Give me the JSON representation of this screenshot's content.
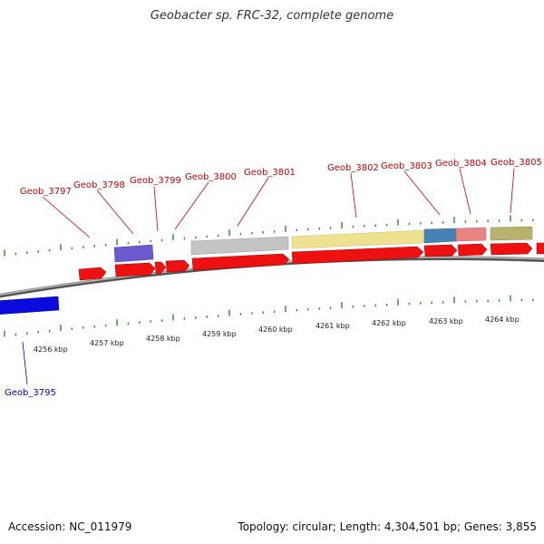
{
  "title": "Geobacter sp. FRC-32, complete genome",
  "footer": {
    "accession": "Accession: NC_011979",
    "summary": "Topology: circular; Length: 4,304,501 bp; Genes: 3,855"
  },
  "colors": {
    "label_red": "#cc0000",
    "label_blue": "#0000cc",
    "tick_green": "#2e8b2e",
    "cds_red": "#ee1111",
    "backbone": "#888888"
  },
  "scale_labels": [
    "4256 kbp",
    "4257 kbp",
    "4258 kbp",
    "4259 kbp",
    "4260 kbp",
    "4261 kbp",
    "4262 kbp",
    "4263 kbp",
    "4264 kbp"
  ],
  "gene_labels": [
    {
      "text": "Geob_3797",
      "strand": "forward"
    },
    {
      "text": "Geob_3798",
      "strand": "forward"
    },
    {
      "text": "Geob_3799",
      "strand": "forward"
    },
    {
      "text": "Geob_3800",
      "strand": "forward"
    },
    {
      "text": "Geob_3801",
      "strand": "forward"
    },
    {
      "text": "Geob_3802",
      "strand": "forward"
    },
    {
      "text": "Geob_3803",
      "strand": "forward"
    },
    {
      "text": "Geob_3804",
      "strand": "forward"
    },
    {
      "text": "Geob_3805",
      "strand": "forward"
    },
    {
      "text": "Geob_3795",
      "strand": "reverse"
    }
  ],
  "feature_colors": {
    "purple": "#6a5acd",
    "gray": "#b8b8b8",
    "yellow": "#eee08a",
    "steelblue": "#4682b4",
    "pink": "#e88080",
    "olive": "#b8b070",
    "blue": "#0b0bdd"
  }
}
